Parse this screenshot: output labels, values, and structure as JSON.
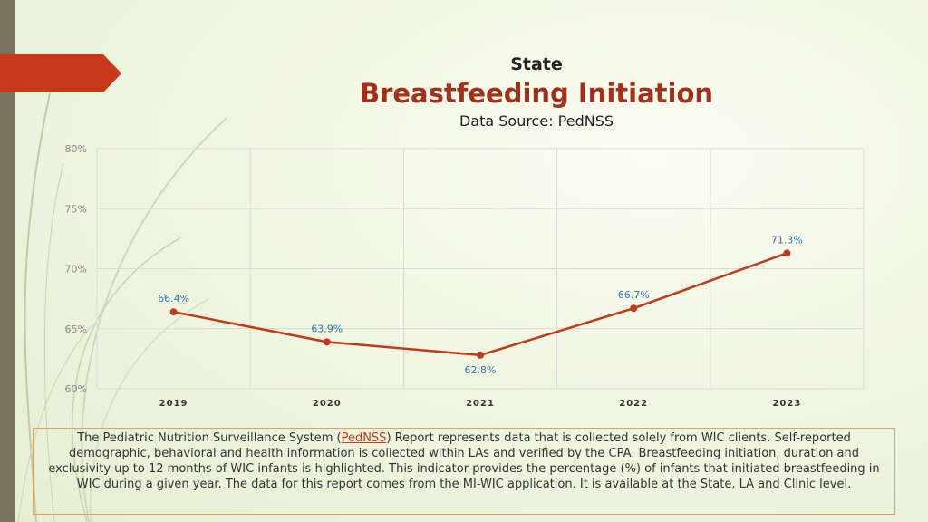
{
  "header": {
    "title_top": "State",
    "title_main": "Breastfeeding Initiation",
    "data_source": "Data Source: PedNSS"
  },
  "chart_data": {
    "type": "line",
    "title": "Breastfeeding Initiation",
    "categories": [
      "2019",
      "2020",
      "2021",
      "2022",
      "2023"
    ],
    "values": [
      66.4,
      63.9,
      62.8,
      66.7,
      71.3
    ],
    "value_labels": [
      "66.4%",
      "63.9%",
      "62.8%",
      "66.7%",
      "71.3%"
    ],
    "label_positions": [
      "above",
      "above",
      "below",
      "above",
      "above"
    ],
    "ylim": [
      60,
      80
    ],
    "yticks": [
      60,
      65,
      70,
      75,
      80
    ],
    "ytick_labels": [
      "60%",
      "65%",
      "70%",
      "75%",
      "80%"
    ],
    "xlabel": "",
    "ylabel": "",
    "grid": true,
    "line_color": "#c0391b",
    "label_color": "#2e74b5"
  },
  "note": {
    "before_link": "The Pediatric Nutrition Surveillance System (",
    "link_text": "PedNSS",
    "after_link": ") Report represents data that is collected solely from WIC clients. Self-reported demographic, behavioral and health information is collected within LAs and verified by the CPA. Breastfeeding initiation, duration and exclusivity up to 12 months of WIC infants is highlighted. This indicator provides the percentage (%) of infants that initiated breastfeeding in WIC during a given year. The data for this report comes from the MI-WIC application. It is available at the State, LA and Clinic level."
  }
}
